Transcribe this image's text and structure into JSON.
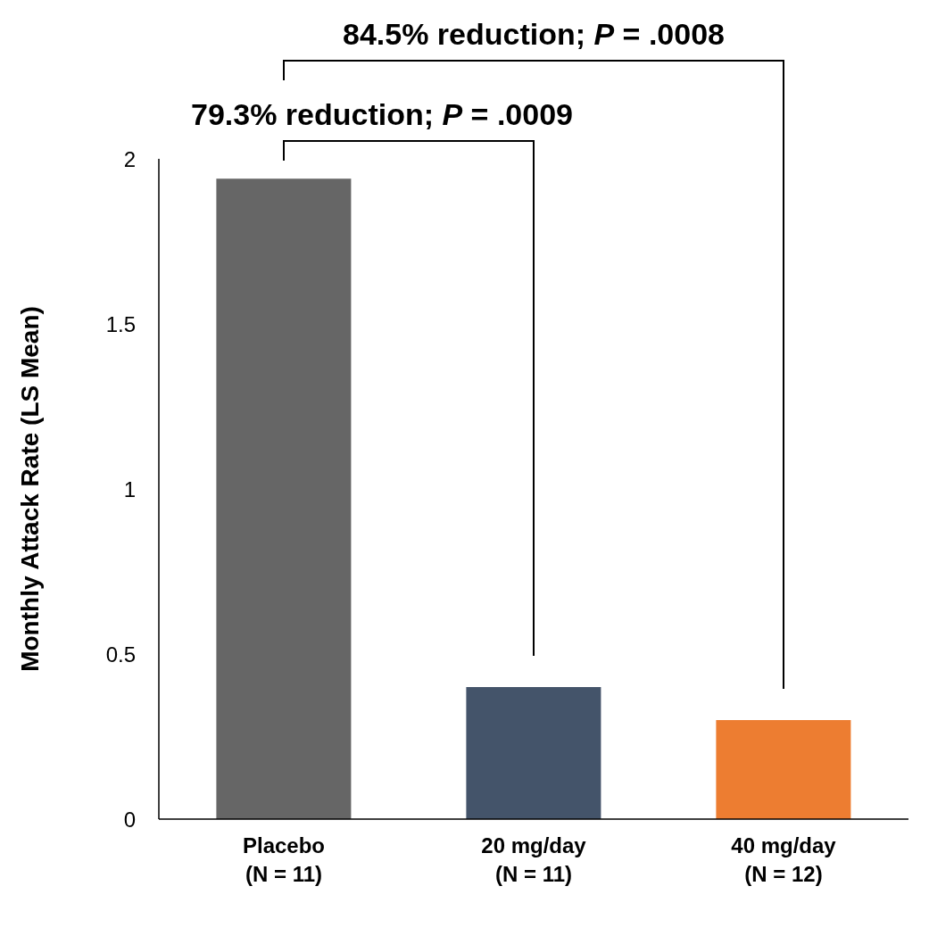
{
  "chart_data": {
    "type": "bar",
    "ylabel": "Monthly Attack Rate (LS Mean)",
    "categories": [
      "Placebo\n(N = 11)",
      "20 mg/day\n(N = 11)",
      "40 mg/day\n(N = 12)"
    ],
    "values": [
      1.94,
      0.4,
      0.3
    ],
    "colors": [
      "#666666",
      "#44546a",
      "#ed7d31"
    ],
    "ylim": [
      0,
      2
    ],
    "yticks": [
      0,
      0.5,
      1,
      1.5,
      2
    ],
    "grid": false,
    "annotations": [
      "79.3% reduction; P = .0009",
      "84.5% reduction; P = .0008"
    ]
  }
}
